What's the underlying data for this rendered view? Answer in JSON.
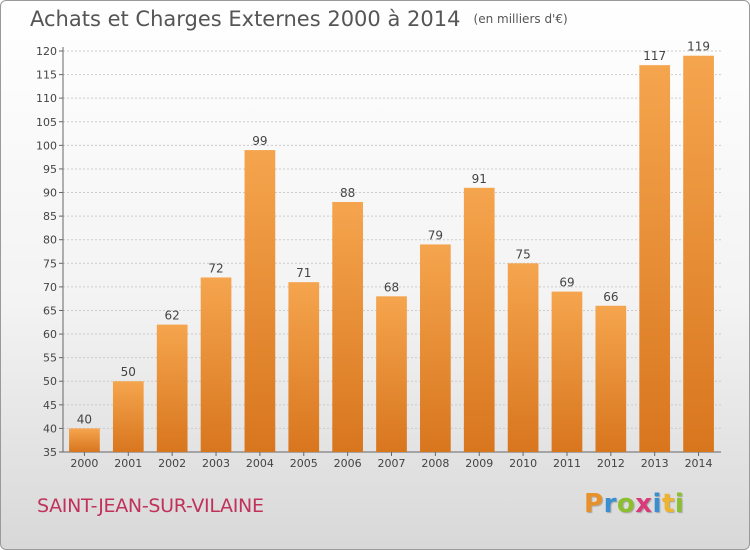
{
  "header": {
    "title": "Achats et Charges Externes 2000 à 2014",
    "subtitle": "(en milliers d'€)"
  },
  "footer": {
    "commune": "SAINT-JEAN-SUR-VILAINE",
    "logo_text": "Proxiti",
    "logo_colors": [
      "#e8912a",
      "#3a8fd0",
      "#8cbf2e",
      "#d93a7a",
      "#3a8fd0",
      "#f0b42c",
      "#8cbf2e"
    ]
  },
  "colors": {
    "bar_light": "#f5a54e",
    "bar_dark": "#d8761e",
    "grid": "#cccccc",
    "text": "#444444"
  },
  "chart_data": {
    "type": "bar",
    "title": "Achats et Charges Externes 2000 à 2014",
    "subtitle": "(en milliers d'€)",
    "categories": [
      "2000",
      "2001",
      "2002",
      "2003",
      "2004",
      "2005",
      "2006",
      "2007",
      "2008",
      "2009",
      "2010",
      "2011",
      "2012",
      "2013",
      "2014"
    ],
    "values": [
      40,
      50,
      62,
      72,
      99,
      71,
      88,
      68,
      79,
      91,
      75,
      69,
      66,
      117,
      119
    ],
    "ylim": [
      35,
      120
    ],
    "yticks": [
      35,
      40,
      45,
      50,
      55,
      60,
      65,
      70,
      75,
      80,
      85,
      90,
      95,
      100,
      105,
      110,
      115,
      120
    ],
    "grid": true,
    "legend": "none"
  }
}
